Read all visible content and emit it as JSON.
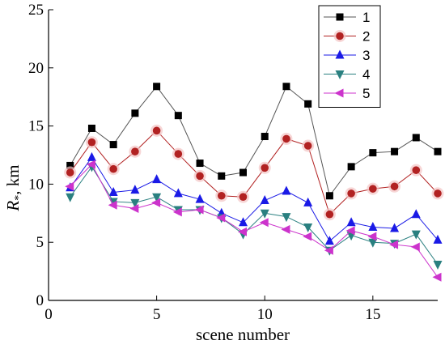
{
  "chart_data": {
    "type": "line",
    "xlabel": "scene number",
    "ylabel_main": "R",
    "ylabel_sub": "*",
    "ylabel_rest": ", km",
    "xlim": [
      0,
      18
    ],
    "ylim": [
      0,
      25
    ],
    "xticks": [
      0,
      5,
      10,
      15
    ],
    "yticks": [
      0,
      5,
      10,
      15,
      20,
      25
    ],
    "grid": false,
    "legend_position": "top-right",
    "x": [
      1,
      2,
      3,
      4,
      5,
      6,
      7,
      8,
      9,
      10,
      11,
      12,
      13,
      14,
      15,
      16,
      17,
      18
    ],
    "series": [
      {
        "name": "1",
        "marker": "square",
        "color": "#000000",
        "line_color": "#555555",
        "values": [
          11.6,
          14.8,
          13.4,
          16.1,
          18.4,
          15.9,
          11.8,
          10.7,
          11.0,
          14.1,
          18.4,
          16.9,
          9.0,
          11.5,
          12.7,
          12.8,
          14.0,
          12.8
        ]
      },
      {
        "name": "2",
        "marker": "circle",
        "color": "#b22222",
        "line_color": "#b22222",
        "values": [
          11.0,
          13.6,
          11.3,
          12.8,
          14.6,
          12.6,
          10.7,
          9.0,
          8.9,
          11.4,
          13.9,
          13.3,
          7.4,
          9.2,
          9.6,
          9.8,
          11.2,
          9.2
        ]
      },
      {
        "name": "3",
        "marker": "triangle-up",
        "color": "#1a1ae6",
        "line_color": "#1a1ae6",
        "values": [
          9.7,
          12.3,
          9.3,
          9.5,
          10.4,
          9.2,
          8.7,
          7.5,
          6.7,
          8.6,
          9.4,
          8.4,
          5.1,
          6.7,
          6.3,
          6.2,
          7.4,
          5.2
        ]
      },
      {
        "name": "4",
        "marker": "triangle-down",
        "color": "#2a8080",
        "line_color": "#2a8080",
        "values": [
          8.9,
          11.5,
          8.5,
          8.4,
          8.9,
          7.8,
          7.8,
          7.1,
          5.7,
          7.5,
          7.2,
          6.3,
          4.3,
          5.6,
          5.0,
          4.9,
          5.7,
          3.1
        ]
      },
      {
        "name": "5",
        "marker": "triangle-left",
        "color": "#cc33cc",
        "line_color": "#cc33cc",
        "values": [
          9.8,
          11.7,
          8.2,
          7.9,
          8.4,
          7.6,
          7.8,
          7.1,
          5.9,
          6.7,
          6.1,
          5.5,
          4.3,
          6.0,
          5.5,
          4.8,
          4.6,
          2.0
        ]
      }
    ]
  }
}
